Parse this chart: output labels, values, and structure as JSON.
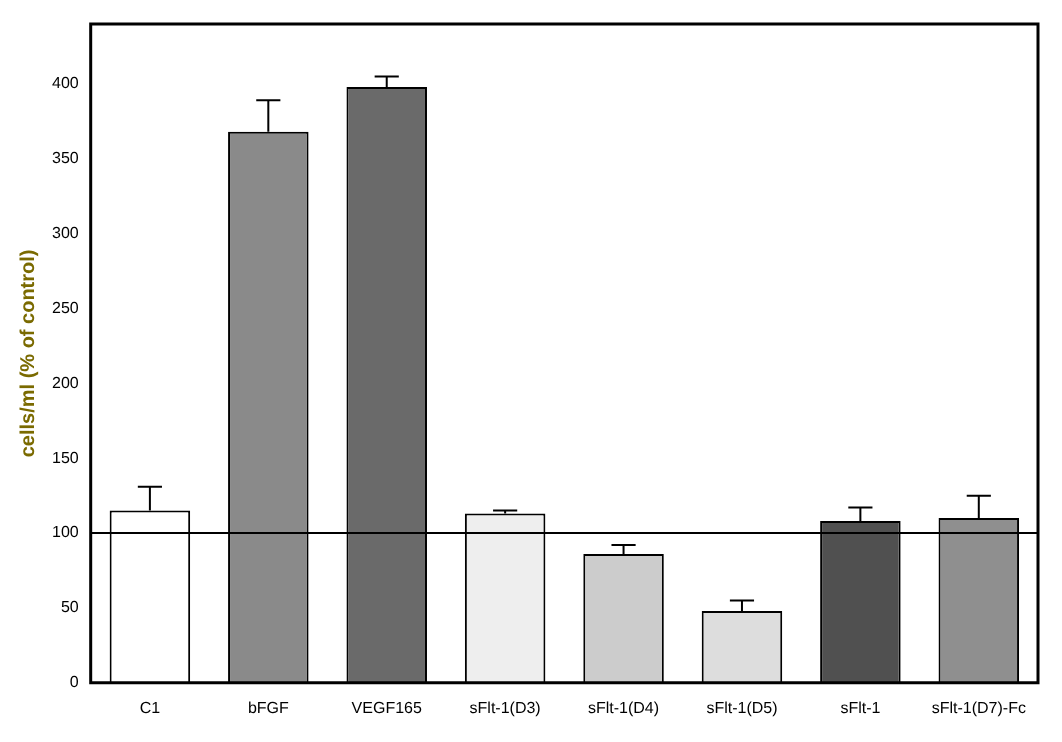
{
  "chart_data": {
    "type": "bar",
    "ylabel": "cells/ml (% of control)",
    "categories": [
      "C1",
      "bFGF",
      "VEGF165",
      "sFlt-1(D3)",
      "sFlt-1(D4)",
      "sFlt-1(D5)",
      "sFlt-1",
      "sFlt-1(D7)-Fc"
    ],
    "values": [
      115,
      368,
      398,
      113,
      86,
      48,
      108,
      110
    ],
    "errors": [
      [
        115,
        131
      ],
      [
        368,
        389
      ],
      [
        398,
        405
      ],
      [
        113,
        115
      ],
      [
        86,
        92
      ],
      [
        48,
        55
      ],
      [
        108,
        117
      ],
      [
        110,
        125
      ]
    ],
    "colors": [
      "#ffffff",
      "#8a8a8a",
      "#6a6a6a",
      "#eeeeee",
      "#cccccc",
      "#dddddd",
      "#505050",
      "#8f8f8f"
    ],
    "ylim": [
      0,
      440
    ],
    "yticks": [
      0,
      50,
      100,
      150,
      200,
      250,
      300,
      350,
      400
    ],
    "ref_lines": [
      {
        "axis": "y",
        "value": 100,
        "color": "#000000"
      }
    ],
    "grid": false,
    "legend": false
  }
}
